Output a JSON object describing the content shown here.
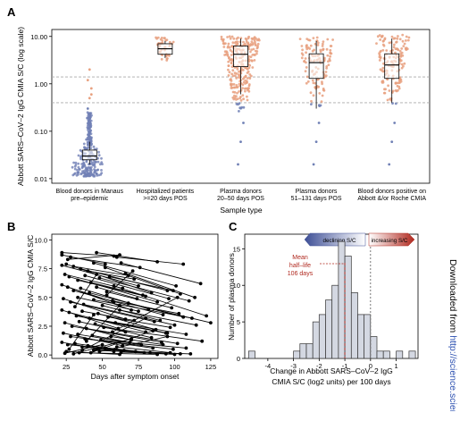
{
  "side_text": {
    "plain": "Downloaded from ",
    "link": "http://science.scien"
  },
  "chart_data": [
    {
      "panel": "A",
      "type": "box-strip",
      "ylabel": "Abbott SARS–CoV–2 IgG CMIA S/C (log scale)",
      "xlabel": "Sample type",
      "yscale": "log",
      "ylim": [
        0.008,
        14
      ],
      "yticks": [
        0.01,
        0.1,
        1.0,
        10.0
      ],
      "ytick_labels": [
        "0.01",
        "0.10",
        "1.00",
        "10.00"
      ],
      "thresholds": [
        1.4,
        0.4
      ],
      "colors": {
        "positive": "#e8a07f",
        "negative": "#7080b5",
        "threshold": "#aaaaaa"
      },
      "categories": [
        {
          "label": [
            "Blood donors in Manaus",
            "pre–epidemic"
          ],
          "box": [
            0.02,
            0.025,
            0.03,
            0.04,
            0.06
          ]
        },
        {
          "label": [
            "Hospitalized patients",
            ">=20 days POS"
          ],
          "box": [
            3.5,
            4.2,
            5.5,
            7.0,
            8.0
          ]
        },
        {
          "label": [
            "Plasma donors",
            "20–50 days POS"
          ],
          "box": [
            0.6,
            2.3,
            4.2,
            6.3,
            9.0
          ]
        },
        {
          "label": [
            "Plasma donors",
            "51–131 days POS"
          ],
          "box": [
            0.3,
            1.3,
            2.8,
            4.3,
            8.0
          ]
        },
        {
          "label": [
            "Blood donors positive on",
            "Abbott &/or Roche CMIA"
          ],
          "box": [
            0.4,
            1.3,
            2.5,
            4.3,
            9.0
          ]
        }
      ]
    },
    {
      "panel": "B",
      "type": "line",
      "ylabel": "Abbott SARS–CoV–2 IgG CMIA S/C",
      "xlabel": "Days after symptom onset",
      "xlim": [
        15,
        130
      ],
      "ylim": [
        -0.3,
        10.5
      ],
      "xticks": [
        25,
        50,
        75,
        100,
        125
      ],
      "yticks": [
        0.0,
        2.5,
        5.0,
        7.5,
        10.0
      ],
      "ytick_labels": [
        "0.0",
        "2.5",
        "5.0",
        "7.5",
        "10.0"
      ],
      "series": [
        {
          "points": [
            [
              22,
              8.9
            ],
            [
              58,
              8.6
            ]
          ]
        },
        {
          "points": [
            [
              22,
              8.7
            ],
            [
              52,
              7.9
            ]
          ]
        },
        {
          "points": [
            [
              28,
              8.5
            ],
            [
              76,
              7.6
            ]
          ]
        },
        {
          "points": [
            [
              26,
              8.3
            ],
            [
              62,
              8.7
            ]
          ]
        },
        {
          "points": [
            [
              46,
              8.9
            ],
            [
              88,
              8.1
            ]
          ]
        },
        {
          "points": [
            [
              60,
              8.5
            ],
            [
              106,
              7.9
            ]
          ]
        },
        {
          "points": [
            [
              22,
              7.8
            ],
            [
              75,
              6.0
            ]
          ]
        },
        {
          "points": [
            [
              25,
              7.9
            ],
            [
              84,
              5.4
            ]
          ]
        },
        {
          "points": [
            [
              30,
              7.7
            ],
            [
              68,
              6.9
            ]
          ]
        },
        {
          "points": [
            [
              35,
              7.5
            ],
            [
              95,
              5.6
            ]
          ]
        },
        {
          "points": [
            [
              40,
              7.3
            ],
            [
              72,
              6.6
            ]
          ]
        },
        {
          "points": [
            [
              44,
              8.0
            ],
            [
              101,
              6.0
            ]
          ]
        },
        {
          "points": [
            [
              52,
              7.6
            ],
            [
              104,
              5.3
            ]
          ]
        },
        {
          "points": [
            [
              63,
              8.0
            ],
            [
              118,
              6.2
            ]
          ]
        },
        {
          "points": [
            [
              24,
              7.0
            ],
            [
              64,
              5.8
            ]
          ]
        },
        {
          "points": [
            [
              27,
              6.8
            ],
            [
              88,
              4.6
            ]
          ]
        },
        {
          "points": [
            [
              33,
              6.5
            ],
            [
              80,
              5.1
            ]
          ]
        },
        {
          "points": [
            [
              38,
              6.9
            ],
            [
              96,
              4.9
            ]
          ]
        },
        {
          "points": [
            [
              42,
              6.3
            ],
            [
              78,
              5.2
            ]
          ]
        },
        {
          "points": [
            [
              48,
              6.7
            ],
            [
              110,
              4.7
            ]
          ]
        },
        {
          "points": [
            [
              55,
              6.8
            ],
            [
              99,
              5.6
            ]
          ]
        },
        {
          "points": [
            [
              66,
              7.1
            ],
            [
              114,
              5.0
            ]
          ]
        },
        {
          "points": [
            [
              22,
              6.1
            ],
            [
              70,
              3.9
            ]
          ]
        },
        {
          "points": [
            [
              26,
              5.9
            ],
            [
              58,
              4.6
            ]
          ]
        },
        {
          "points": [
            [
              30,
              5.6
            ],
            [
              92,
              3.5
            ]
          ]
        },
        {
          "points": [
            [
              35,
              5.8
            ],
            [
              82,
              4.0
            ]
          ]
        },
        {
          "points": [
            [
              41,
              5.4
            ],
            [
              106,
              3.3
            ]
          ]
        },
        {
          "points": [
            [
              46,
              5.9
            ],
            [
              74,
              4.9
            ]
          ]
        },
        {
          "points": [
            [
              53,
              5.5
            ],
            [
              98,
              4.1
            ]
          ]
        },
        {
          "points": [
            [
              58,
              6.0
            ],
            [
              122,
              3.4
            ]
          ]
        },
        {
          "points": [
            [
              23,
              4.9
            ],
            [
              66,
              3.1
            ]
          ]
        },
        {
          "points": [
            [
              28,
              4.6
            ],
            [
              86,
              2.9
            ]
          ]
        },
        {
          "points": [
            [
              33,
              5.0
            ],
            [
              75,
              3.8
            ]
          ]
        },
        {
          "points": [
            [
              37,
              4.4
            ],
            [
              100,
              2.6
            ]
          ]
        },
        {
          "points": [
            [
              44,
              4.8
            ],
            [
              112,
              3.2
            ]
          ]
        },
        {
          "points": [
            [
              50,
              4.3
            ],
            [
              90,
              3.0
            ]
          ]
        },
        {
          "points": [
            [
              57,
              4.7
            ],
            [
              103,
              3.6
            ]
          ]
        },
        {
          "points": [
            [
              68,
              4.5
            ],
            [
              125,
              2.8
            ]
          ]
        },
        {
          "points": [
            [
              22,
              3.9
            ],
            [
              61,
              2.3
            ]
          ]
        },
        {
          "points": [
            [
              27,
              3.7
            ],
            [
              80,
              2.0
            ]
          ]
        },
        {
          "points": [
            [
              32,
              3.4
            ],
            [
              94,
              1.9
            ]
          ]
        },
        {
          "points": [
            [
              36,
              3.8
            ],
            [
              72,
              3.0
            ]
          ]
        },
        {
          "points": [
            [
              41,
              3.2
            ],
            [
              108,
              1.8
            ]
          ]
        },
        {
          "points": [
            [
              47,
              3.6
            ],
            [
              87,
              2.2
            ]
          ]
        },
        {
          "points": [
            [
              54,
              3.3
            ],
            [
              97,
              2.4
            ]
          ]
        },
        {
          "points": [
            [
              62,
              3.9
            ],
            [
              115,
              2.6
            ]
          ]
        },
        {
          "points": [
            [
              24,
              2.8
            ],
            [
              70,
              1.3
            ]
          ]
        },
        {
          "points": [
            [
              29,
              2.5
            ],
            [
              91,
              1.1
            ]
          ]
        },
        {
          "points": [
            [
              34,
              2.9
            ],
            [
              66,
              2.0
            ]
          ]
        },
        {
          "points": [
            [
              39,
              2.3
            ],
            [
              102,
              1.0
            ]
          ]
        },
        {
          "points": [
            [
              45,
              2.7
            ],
            [
              84,
              1.5
            ]
          ]
        },
        {
          "points": [
            [
              51,
              2.4
            ],
            [
              119,
              1.2
            ]
          ]
        },
        {
          "points": [
            [
              59,
              2.8
            ],
            [
              95,
              1.9
            ]
          ]
        },
        {
          "points": [
            [
              23,
              1.9
            ],
            [
              64,
              0.8
            ]
          ]
        },
        {
          "points": [
            [
              28,
              1.6
            ],
            [
              85,
              0.6
            ]
          ]
        },
        {
          "points": [
            [
              33,
              1.8
            ],
            [
              77,
              0.9
            ]
          ]
        },
        {
          "points": [
            [
              38,
              1.4
            ],
            [
              99,
              0.5
            ]
          ]
        },
        {
          "points": [
            [
              43,
              1.7
            ],
            [
              69,
              1.1
            ]
          ]
        },
        {
          "points": [
            [
              49,
              1.3
            ],
            [
              108,
              0.6
            ]
          ]
        },
        {
          "points": [
            [
              56,
              1.6
            ],
            [
              92,
              0.9
            ]
          ]
        },
        {
          "points": [
            [
              22,
              1.1
            ],
            [
              58,
              0.3
            ]
          ]
        },
        {
          "points": [
            [
              26,
              0.9
            ],
            [
              79,
              0.2
            ]
          ]
        },
        {
          "points": [
            [
              31,
              1.0
            ],
            [
              65,
              0.4
            ]
          ]
        },
        {
          "points": [
            [
              36,
              0.7
            ],
            [
              94,
              0.1
            ]
          ]
        },
        {
          "points": [
            [
              40,
              0.8
            ],
            [
              83,
              0.2
            ]
          ]
        },
        {
          "points": [
            [
              46,
              0.5
            ],
            [
              104,
              0.1
            ]
          ]
        },
        {
          "points": [
            [
              52,
              0.6
            ],
            [
              73,
              0.3
            ]
          ]
        },
        {
          "points": [
            [
              60,
              0.7
            ],
            [
              97,
              0.2
            ]
          ]
        },
        {
          "points": [
            [
              25,
              0.3
            ],
            [
              62,
              0.05
            ]
          ]
        },
        {
          "points": [
            [
              34,
              0.2
            ],
            [
              88,
              0.05
            ]
          ]
        },
        {
          "points": [
            [
              44,
              0.4
            ],
            [
              111,
              0.1
            ]
          ]
        },
        {
          "points": [
            [
              63,
              0.25
            ],
            [
              100,
              0.05
            ]
          ]
        },
        {
          "points": [
            [
              24,
              0.15
            ],
            [
              50,
              0.9
            ]
          ]
        },
        {
          "points": [
            [
              30,
              0.1
            ],
            [
              70,
              1.4
            ]
          ]
        },
        {
          "points": [
            [
              36,
              0.4
            ],
            [
              80,
              3.2
            ]
          ]
        },
        {
          "points": [
            [
              42,
              0.2
            ],
            [
              85,
              2.1
            ]
          ]
        },
        {
          "points": [
            [
              39,
              1.2
            ],
            [
              62,
              4.3
            ]
          ]
        },
        {
          "points": [
            [
              48,
              0.3
            ],
            [
              95,
              1.6
            ]
          ]
        },
        {
          "points": [
            [
              57,
              2.0
            ],
            [
              102,
              5.0
            ]
          ]
        },
        {
          "points": [
            [
              31,
              4.2
            ],
            [
              46,
              7.0
            ]
          ]
        },
        {
          "points": [
            [
              53,
              5.2
            ],
            [
              71,
              7.3
            ]
          ]
        },
        {
          "points": [
            [
              27,
              0.5
            ],
            [
              44,
              3.5
            ]
          ]
        }
      ]
    },
    {
      "panel": "C",
      "type": "histogram",
      "ylabel": "Number of plasma donors",
      "xlabel": [
        "Change in Abbott SARS–CoV–2 IgG",
        "CMIA S/C (log2 units) per 100 days"
      ],
      "xlim": [
        -4.9,
        1.85
      ],
      "ylim": [
        0,
        17
      ],
      "xticks": [
        -4,
        -3,
        -2,
        -1,
        0,
        1
      ],
      "yticks": [
        0,
        5,
        10,
        15
      ],
      "bin_width": 0.25,
      "bins": [
        {
          "x0": -4.75,
          "count": 1
        },
        {
          "x0": -3.0,
          "count": 1
        },
        {
          "x0": -2.75,
          "count": 2
        },
        {
          "x0": -2.5,
          "count": 2
        },
        {
          "x0": -2.25,
          "count": 5
        },
        {
          "x0": -2.0,
          "count": 6
        },
        {
          "x0": -1.75,
          "count": 8
        },
        {
          "x0": -1.5,
          "count": 10
        },
        {
          "x0": -1.25,
          "count": 16
        },
        {
          "x0": -1.0,
          "count": 14
        },
        {
          "x0": -0.75,
          "count": 9
        },
        {
          "x0": -0.5,
          "count": 6
        },
        {
          "x0": -0.25,
          "count": 6
        },
        {
          "x0": 0.0,
          "count": 3
        },
        {
          "x0": 0.25,
          "count": 1
        },
        {
          "x0": 0.5,
          "count": 1
        },
        {
          "x0": 1.0,
          "count": 1
        },
        {
          "x0": 1.5,
          "count": 1
        }
      ],
      "mean_change": -1.0,
      "mean_annotation": [
        "Mean",
        "half–life",
        "106 days"
      ],
      "arrows": {
        "left": "declining S/C",
        "right": "increasing S/C"
      },
      "colors": {
        "bar": "#d4d8e2",
        "mean": "#b0281e",
        "arrow_left": "#3e4f96",
        "arrow_right": "#b0281e"
      }
    }
  ]
}
